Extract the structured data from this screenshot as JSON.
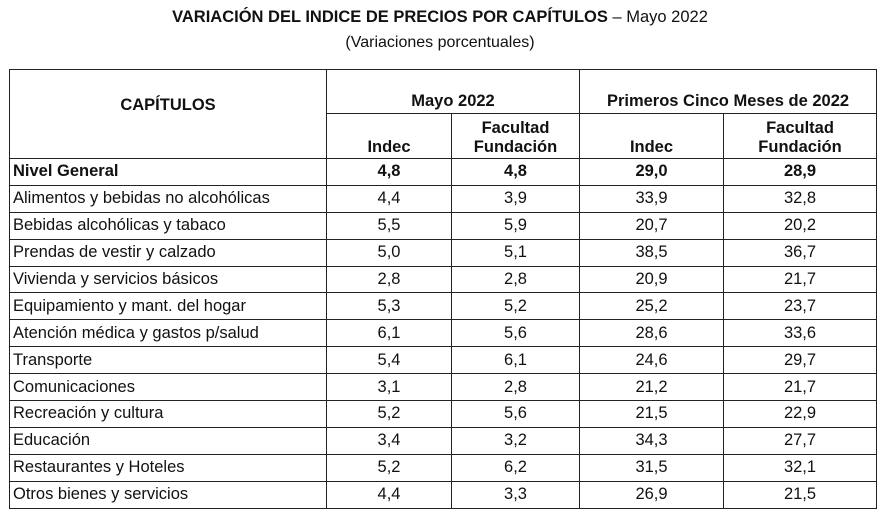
{
  "title": {
    "bold": "VARIACIÓN DEL INDICE DE PRECIOS POR CAPÍTULOS",
    "rest": " – Mayo 2022"
  },
  "subtitle": "(Variaciones porcentuales)",
  "table": {
    "header": {
      "capitulos": "CAPÍTULOS",
      "group_1": "Mayo 2022",
      "group_2": "Primeros Cinco Meses de 2022",
      "indec": "Indec",
      "facultad_line1": "Facultad",
      "facultad_line2": "Fundación"
    },
    "rows": [
      {
        "label": "Nivel General",
        "mayo_indec": "4,8",
        "mayo_ff": "4,8",
        "cinco_indec": "29,0",
        "cinco_ff": "28,9"
      },
      {
        "label": "Alimentos y bebidas no alcohólicas",
        "mayo_indec": "4,4",
        "mayo_ff": "3,9",
        "cinco_indec": "33,9",
        "cinco_ff": "32,8"
      },
      {
        "label": "Bebidas alcohólicas y tabaco",
        "mayo_indec": "5,5",
        "mayo_ff": "5,9",
        "cinco_indec": "20,7",
        "cinco_ff": "20,2"
      },
      {
        "label": "Prendas de vestir y calzado",
        "mayo_indec": "5,0",
        "mayo_ff": "5,1",
        "cinco_indec": "38,5",
        "cinco_ff": "36,7"
      },
      {
        "label": "Vivienda y servicios básicos",
        "mayo_indec": "2,8",
        "mayo_ff": "2,8",
        "cinco_indec": "20,9",
        "cinco_ff": "21,7"
      },
      {
        "label": "Equipamiento y mant. del hogar",
        "mayo_indec": "5,3",
        "mayo_ff": "5,2",
        "cinco_indec": "25,2",
        "cinco_ff": "23,7"
      },
      {
        "label": "Atención médica y gastos p/salud",
        "mayo_indec": "6,1",
        "mayo_ff": "5,6",
        "cinco_indec": "28,6",
        "cinco_ff": "33,6"
      },
      {
        "label": "Transporte",
        "mayo_indec": "5,4",
        "mayo_ff": "6,1",
        "cinco_indec": "24,6",
        "cinco_ff": "29,7"
      },
      {
        "label": "Comunicaciones",
        "mayo_indec": "3,1",
        "mayo_ff": "2,8",
        "cinco_indec": "21,2",
        "cinco_ff": "21,7"
      },
      {
        "label": "Recreación y cultura",
        "mayo_indec": "5,2",
        "mayo_ff": "5,6",
        "cinco_indec": "21,5",
        "cinco_ff": "22,9"
      },
      {
        "label": "Educación",
        "mayo_indec": "3,4",
        "mayo_ff": "3,2",
        "cinco_indec": "34,3",
        "cinco_ff": "27,7"
      },
      {
        "label": "Restaurantes y Hoteles",
        "mayo_indec": "5,2",
        "mayo_ff": "6,2",
        "cinco_indec": "31,5",
        "cinco_ff": "32,1"
      },
      {
        "label": "Otros bienes y servicios",
        "mayo_indec": "4,4",
        "mayo_ff": "3,3",
        "cinco_indec": "26,9",
        "cinco_ff": "21,5"
      }
    ]
  }
}
